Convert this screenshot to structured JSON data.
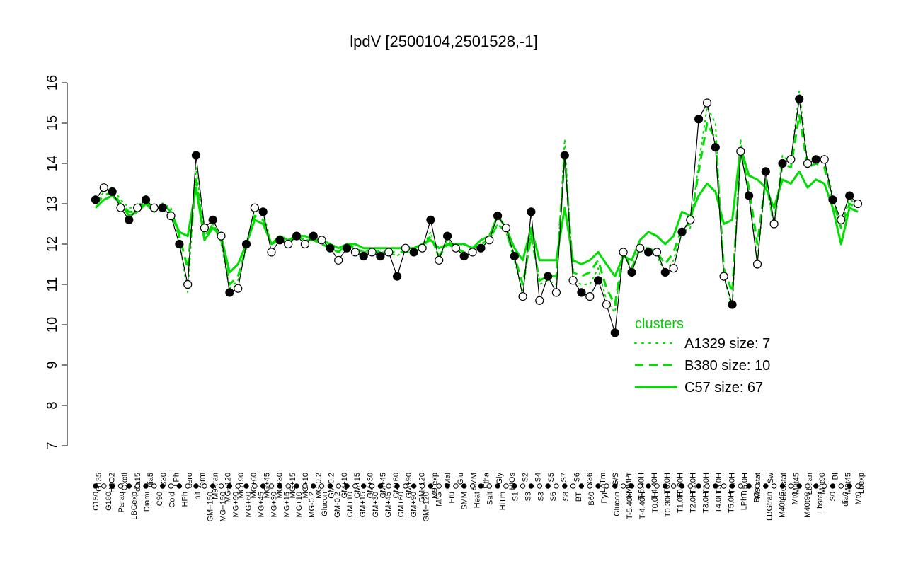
{
  "chart_data": {
    "type": "line",
    "title": "lpdV [2500104,2501528,-1]",
    "xlabel": "",
    "ylabel": "",
    "ylim": [
      7,
      16
    ],
    "yticks": [
      7,
      8,
      9,
      10,
      11,
      12,
      13,
      14,
      15,
      16
    ],
    "categories": [
      "G150",
      "G135",
      "G180",
      "H2O2",
      "Paraq",
      "Oxctl",
      "LBGexp",
      "dia15",
      "Diami",
      "dia5",
      "C90",
      "C30",
      "Cold",
      "HPh",
      "LPh",
      "aero",
      "nit",
      "ferm",
      "GM+150",
      "M9-tran",
      "MG+150",
      "MG+120",
      "MG+90",
      "MG+60",
      "MG+45",
      "MG+30",
      "MG+15",
      "MG+10",
      "MG-0.2",
      "Glucon",
      "GM-0.2",
      "GM+10",
      "GM+15",
      "GM+30",
      "GM+45",
      "GM+60",
      "GM+90",
      "GM+120",
      "M/G",
      "M9-exp",
      "Mal",
      "Fru",
      "Glu",
      "SMM",
      "BMM",
      "Heat",
      "Etha",
      "Gly",
      "Salt",
      "HiTm",
      "HiOs",
      "S1",
      "S2",
      "S3",
      "S4",
      "S5",
      "S6",
      "S7",
      "S8",
      "BT",
      "B36",
      "B60",
      "LoTm",
      "Pyr",
      "G/S",
      "SMMPr",
      "T-5.40H",
      "T-4.40H",
      "T0.0H",
      "T0.30H",
      "T1.0H",
      "T2.0H",
      "T3.0H",
      "T4.0H",
      "T5.0H",
      "M9-stat",
      "LPhT",
      "Sw",
      "BC",
      "LBGstat",
      "LBGtran",
      "M40t45",
      "Lbtran",
      "M0t45",
      "Mt0",
      "M40t90",
      "M0t90",
      "Lbstat",
      "BI",
      "S0",
      "dia0",
      "Lbexp"
    ],
    "xtick_labels_top": [
      "G135",
      "H2O2",
      "Oxctl",
      "dia15",
      "dia5",
      "C30",
      "LPh",
      "aero",
      "ferm",
      "M9-tran",
      "MG+120",
      "MG+90",
      "MG+60",
      "MG+45",
      "MG+30",
      "MG+15",
      "MG+10",
      "MG-0.2",
      "GM-0.2",
      "GM+10",
      "GM+15",
      "GM+30",
      "GM+45",
      "GM+60",
      "GM+90",
      "GM+120",
      "M9-exp",
      "Mal",
      "Glu",
      "BMM",
      "Etha",
      "Gly",
      "HiOs",
      "S2",
      "S4",
      "S5",
      "S7",
      "S6",
      "B36",
      "LoTm",
      "G/S",
      "SMMPr",
      "T-5.40H",
      "T-4.40H",
      "T0.0H",
      "T0.30H",
      "T1.0H",
      "T2.0H",
      "T3.0H",
      "T4.0H",
      "T5.0H",
      "M9-stat",
      "Sw",
      "LBGstat",
      "M0t45",
      "Lbtran",
      "M0t90",
      "BI",
      "M0t45",
      "Lbexp"
    ],
    "xtick_labels_bottom": [
      "G150",
      "G180",
      "Paraq",
      "LBGexp",
      "Diami",
      "C90",
      "Cold",
      "HPh",
      "nit",
      "GM+150",
      "MG+150",
      "MG+90",
      "MG+60",
      "MG+45",
      "MG+30",
      "MG+15",
      "MG+10",
      "MG-0.2",
      "Glucon",
      "GM-0.2",
      "GM+10",
      "GM+15",
      "GM+30",
      "GM+45",
      "GM+60",
      "GM+90",
      "GM+120",
      "M/G",
      "Fru",
      "SMM",
      "Heat",
      "Salt",
      "HiTm",
      "S1",
      "S3",
      "S3",
      "S6",
      "S8",
      "BT",
      "B60",
      "Pyr",
      "Glucon",
      "T-5.40H",
      "T-4.40H",
      "T0.0H",
      "T0.30H",
      "T1.0H",
      "T2.0H",
      "T3.0H",
      "T4.0H",
      "T5.0H",
      "LPhT",
      "BC",
      "LBGtran",
      "M40t45",
      "Mt0",
      "M40t90",
      "Lbstat",
      "S0",
      "dia0",
      "Mt0"
    ],
    "legend": {
      "title": "clusters",
      "position": "right",
      "entries": [
        {
          "label": "A1329 size: 7",
          "style": "dotted"
        },
        {
          "label": "B380 size: 10",
          "style": "dashed"
        },
        {
          "label": "C57 size: 67",
          "style": "solid"
        }
      ]
    },
    "series": [
      {
        "name": "A1329 size: 7",
        "style": "dotted",
        "values": [
          13.0,
          13.3,
          13.4,
          13.1,
          12.9,
          12.9,
          13.2,
          12.8,
          13.0,
          12.9,
          12.1,
          10.8,
          13.9,
          12.2,
          12.5,
          12.0,
          10.9,
          11.1,
          11.9,
          12.9,
          12.8,
          12.0,
          12.1,
          12.0,
          12.2,
          12.1,
          12.1,
          12.0,
          11.9,
          11.8,
          12.0,
          11.9,
          11.8,
          11.9,
          11.8,
          11.8,
          11.7,
          11.9,
          11.8,
          11.9,
          12.3,
          11.6,
          12.1,
          11.9,
          11.8,
          11.8,
          12.0,
          12.1,
          12.5,
          12.3,
          11.6,
          10.8,
          12.3,
          11.0,
          11.1,
          11.0,
          14.6,
          11.1,
          11.0,
          11.0,
          11.4,
          10.6,
          10.3,
          11.9,
          11.3,
          11.9,
          11.8,
          11.7,
          11.3,
          11.6,
          12.3,
          12.4,
          14.0,
          15.4,
          15.0,
          11.2,
          10.4,
          14.6,
          13.2,
          11.6,
          13.6,
          12.4,
          14.2,
          14.0,
          15.8,
          14.0,
          14.1,
          14.1,
          13.2,
          12.5,
          13.1,
          13.0
        ]
      },
      {
        "name": "B380 size: 10",
        "style": "dashed",
        "values": [
          13.0,
          13.2,
          13.3,
          13.0,
          12.8,
          12.8,
          13.1,
          12.8,
          13.0,
          12.8,
          12.2,
          11.4,
          13.6,
          12.1,
          12.5,
          12.1,
          11.0,
          11.2,
          11.9,
          12.7,
          12.6,
          12.0,
          12.1,
          12.0,
          12.2,
          12.1,
          12.1,
          12.0,
          11.9,
          11.8,
          12.0,
          11.9,
          11.8,
          11.8,
          11.8,
          11.8,
          11.8,
          11.8,
          11.8,
          11.9,
          12.2,
          11.7,
          12.0,
          11.9,
          11.8,
          11.9,
          12.0,
          12.1,
          12.5,
          12.3,
          11.7,
          11.0,
          12.2,
          11.1,
          11.2,
          11.2,
          14.2,
          11.3,
          11.2,
          11.3,
          11.6,
          10.9,
          10.5,
          11.8,
          11.4,
          11.9,
          11.9,
          11.8,
          11.5,
          11.8,
          12.4,
          12.5,
          13.8,
          15.0,
          14.6,
          11.4,
          10.8,
          14.3,
          13.4,
          12.0,
          13.6,
          12.5,
          14.0,
          13.9,
          15.2,
          13.9,
          14.0,
          13.9,
          13.1,
          12.4,
          13.0,
          12.9
        ]
      },
      {
        "name": "C57 size: 67",
        "style": "solid",
        "values": [
          12.9,
          13.1,
          13.2,
          13.0,
          12.7,
          12.8,
          13.0,
          12.8,
          13.0,
          12.8,
          12.3,
          12.2,
          13.4,
          12.1,
          12.4,
          12.2,
          11.3,
          11.5,
          12.0,
          12.6,
          12.5,
          12.0,
          12.2,
          12.1,
          12.2,
          12.2,
          12.1,
          12.1,
          12.0,
          11.9,
          12.0,
          12.0,
          11.9,
          11.9,
          11.9,
          11.9,
          11.9,
          11.9,
          11.9,
          12.0,
          12.1,
          11.9,
          12.0,
          12.0,
          12.0,
          11.9,
          12.1,
          12.2,
          12.7,
          12.4,
          11.9,
          11.6,
          12.4,
          11.6,
          11.6,
          11.6,
          12.9,
          11.6,
          11.5,
          11.6,
          11.8,
          11.5,
          11.2,
          11.7,
          11.6,
          12.1,
          12.3,
          12.2,
          12.0,
          12.2,
          12.8,
          12.7,
          13.2,
          13.5,
          13.3,
          12.5,
          12.6,
          14.4,
          13.7,
          13.6,
          13.4,
          12.9,
          13.6,
          13.5,
          13.8,
          13.4,
          13.6,
          13.5,
          12.9,
          12.0,
          12.9,
          12.8
        ]
      },
      {
        "name": "",
        "style": "points",
        "values": [
          13.1,
          13.4,
          13.3,
          12.9,
          12.6,
          12.9,
          13.1,
          12.9,
          12.9,
          12.7,
          12.0,
          11.0,
          14.2,
          12.4,
          12.6,
          12.2,
          10.8,
          10.9,
          12.0,
          12.9,
          12.8,
          11.8,
          12.1,
          12.0,
          12.2,
          12.0,
          12.2,
          12.1,
          11.9,
          11.6,
          11.9,
          11.8,
          11.7,
          11.8,
          11.7,
          11.8,
          11.2,
          11.9,
          11.8,
          11.9,
          12.6,
          11.6,
          12.2,
          11.9,
          11.7,
          11.8,
          11.9,
          12.1,
          12.7,
          12.4,
          11.7,
          10.7,
          12.8,
          10.6,
          11.2,
          10.8,
          14.2,
          11.1,
          10.8,
          10.7,
          11.1,
          10.5,
          9.8,
          11.8,
          11.3,
          11.9,
          11.8,
          11.8,
          11.3,
          11.4,
          12.3,
          12.6,
          15.1,
          15.5,
          14.4,
          11.2,
          10.5,
          14.3,
          13.2,
          11.5,
          13.8,
          12.5,
          14.0,
          14.1,
          15.6,
          14.0,
          14.1,
          14.1,
          13.1,
          12.6,
          13.2,
          13.0
        ]
      }
    ]
  }
}
